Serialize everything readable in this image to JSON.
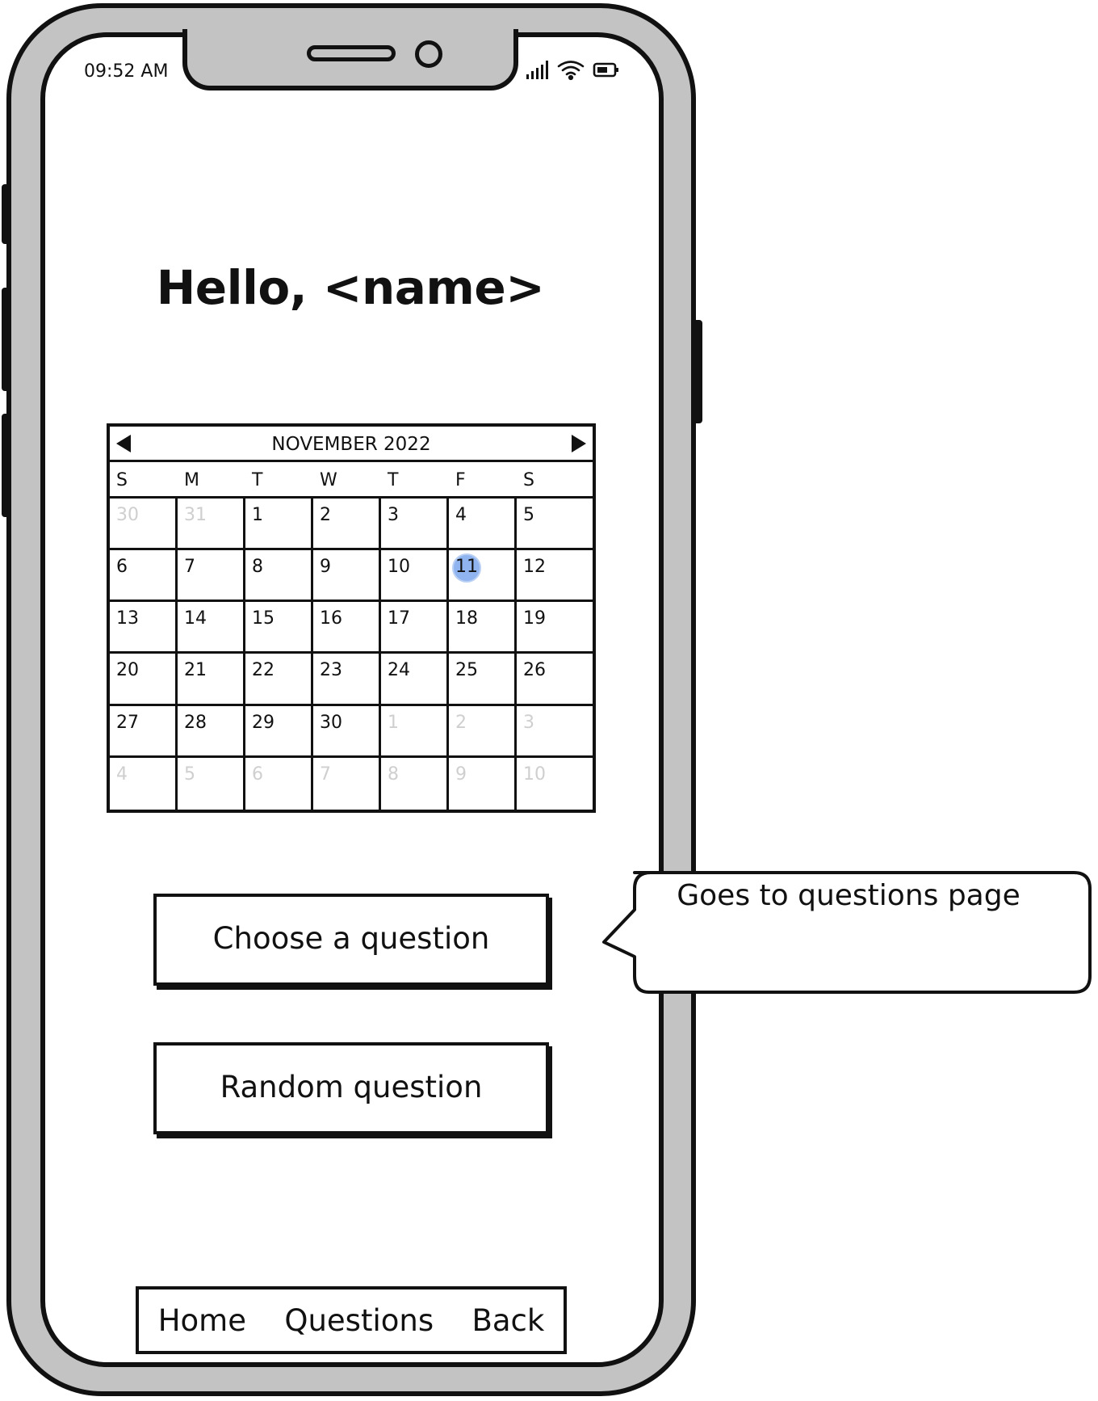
{
  "status_bar": {
    "time": "09:52 AM",
    "icons": [
      "cellular-signal-icon",
      "wifi-icon",
      "battery-icon"
    ]
  },
  "greeting": "Hello, <name>",
  "calendar": {
    "month_label": "NOVEMBER 2022",
    "weekdays": [
      "S",
      "M",
      "T",
      "W",
      "T",
      "F",
      "S"
    ],
    "selected_day": "11",
    "selected_color": "#8fb4ef",
    "muted_color": "#cfcfcf",
    "days": [
      {
        "d": "30",
        "muted": true
      },
      {
        "d": "31",
        "muted": true
      },
      {
        "d": "1"
      },
      {
        "d": "2"
      },
      {
        "d": "3"
      },
      {
        "d": "4"
      },
      {
        "d": "5"
      },
      {
        "d": "6"
      },
      {
        "d": "7"
      },
      {
        "d": "8"
      },
      {
        "d": "9"
      },
      {
        "d": "10"
      },
      {
        "d": "11",
        "selected": true
      },
      {
        "d": "12"
      },
      {
        "d": "13"
      },
      {
        "d": "14"
      },
      {
        "d": "15"
      },
      {
        "d": "16"
      },
      {
        "d": "17"
      },
      {
        "d": "18"
      },
      {
        "d": "19"
      },
      {
        "d": "20"
      },
      {
        "d": "21"
      },
      {
        "d": "22"
      },
      {
        "d": "23"
      },
      {
        "d": "24"
      },
      {
        "d": "25"
      },
      {
        "d": "26"
      },
      {
        "d": "27"
      },
      {
        "d": "28"
      },
      {
        "d": "29"
      },
      {
        "d": "30"
      },
      {
        "d": "1",
        "muted": true
      },
      {
        "d": "2",
        "muted": true
      },
      {
        "d": "3",
        "muted": true
      },
      {
        "d": "4",
        "muted": true
      },
      {
        "d": "5",
        "muted": true
      },
      {
        "d": "6",
        "muted": true
      },
      {
        "d": "7",
        "muted": true
      },
      {
        "d": "8",
        "muted": true
      },
      {
        "d": "9",
        "muted": true
      },
      {
        "d": "10",
        "muted": true
      }
    ]
  },
  "buttons": {
    "choose_label": "Choose a question",
    "random_label": "Random question"
  },
  "callout": {
    "text": "Goes to questions page"
  },
  "nav": {
    "items": [
      "Home",
      "Questions",
      "Back"
    ]
  },
  "colors": {
    "frame": "#c3c3c3",
    "outline": "#111111"
  }
}
